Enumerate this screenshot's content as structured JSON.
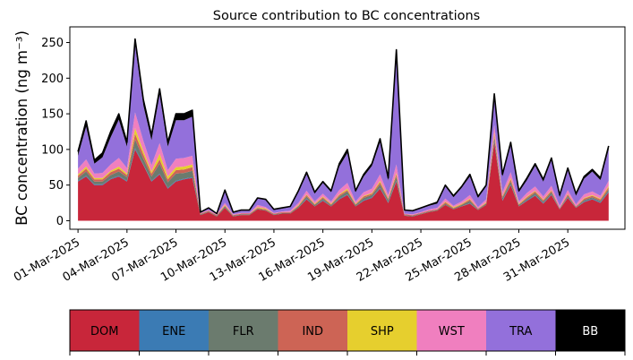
{
  "chart_data": {
    "type": "area",
    "stacked": true,
    "title": "Source contribution to BC concentrations",
    "ylabel": "BC concentration (ng m⁻³)",
    "xlabel": "",
    "x_range": [
      "2025-02-28T12:00",
      "2025-04-03T12:00"
    ],
    "ylim": [
      -12,
      272
    ],
    "yticks": [
      0,
      50,
      100,
      150,
      200,
      250
    ],
    "xticks": [
      "01-Mar-2025",
      "04-Mar-2025",
      "07-Mar-2025",
      "10-Mar-2025",
      "13-Mar-2025",
      "16-Mar-2025",
      "19-Mar-2025",
      "22-Mar-2025",
      "25-Mar-2025",
      "28-Mar-2025",
      "31-Mar-2025"
    ],
    "grid": false,
    "legend": {
      "placement": "bottom-colorbar"
    },
    "series_colors": {
      "DOM": "#c8263a",
      "ENE": "#3b7bb4",
      "FLR": "#6b7b6e",
      "IND": "#cd6455",
      "SHP": "#e6cf2e",
      "WST": "#f07fbf",
      "TRA": "#9370db",
      "BB": "#000000"
    },
    "x": [
      "2025-03-01T00:00",
      "2025-03-01T12:00",
      "2025-03-02T00:00",
      "2025-03-02T12:00",
      "2025-03-03T00:00",
      "2025-03-03T12:00",
      "2025-03-04T00:00",
      "2025-03-04T12:00",
      "2025-03-05T00:00",
      "2025-03-05T12:00",
      "2025-03-06T00:00",
      "2025-03-06T12:00",
      "2025-03-07T00:00",
      "2025-03-07T12:00",
      "2025-03-08T00:00",
      "2025-03-08T12:00",
      "2025-03-09T00:00",
      "2025-03-09T12:00",
      "2025-03-10T00:00",
      "2025-03-10T12:00",
      "2025-03-11T00:00",
      "2025-03-11T12:00",
      "2025-03-12T00:00",
      "2025-03-12T12:00",
      "2025-03-13T00:00",
      "2025-03-13T12:00",
      "2025-03-14T00:00",
      "2025-03-14T12:00",
      "2025-03-15T00:00",
      "2025-03-15T12:00",
      "2025-03-16T00:00",
      "2025-03-16T12:00",
      "2025-03-17T00:00",
      "2025-03-17T12:00",
      "2025-03-18T00:00",
      "2025-03-18T12:00",
      "2025-03-19T00:00",
      "2025-03-19T12:00",
      "2025-03-20T00:00",
      "2025-03-20T12:00",
      "2025-03-21T00:00",
      "2025-03-21T12:00",
      "2025-03-22T00:00",
      "2025-03-22T12:00",
      "2025-03-23T00:00",
      "2025-03-23T12:00",
      "2025-03-24T00:00",
      "2025-03-24T12:00",
      "2025-03-25T00:00",
      "2025-03-25T12:00",
      "2025-03-26T00:00",
      "2025-03-26T12:00",
      "2025-03-27T00:00",
      "2025-03-27T12:00",
      "2025-03-28T00:00",
      "2025-03-28T12:00",
      "2025-03-29T00:00",
      "2025-03-29T12:00",
      "2025-03-30T00:00",
      "2025-03-30T12:00",
      "2025-03-31T00:00",
      "2025-03-31T12:00",
      "2025-04-01T00:00",
      "2025-04-01T12:00",
      "2025-04-02T00:00",
      "2025-04-02T12:00"
    ],
    "total_envelope": [
      97,
      140,
      85,
      95,
      125,
      150,
      110,
      255,
      170,
      120,
      185,
      110,
      150,
      150,
      155,
      12,
      18,
      10,
      43,
      12,
      15,
      15,
      32,
      30,
      16,
      18,
      20,
      42,
      68,
      40,
      55,
      42,
      80,
      100,
      42,
      65,
      80,
      115,
      60,
      240,
      15,
      14,
      18,
      22,
      26,
      50,
      35,
      48,
      65,
      34,
      50,
      178,
      65,
      110,
      42,
      60,
      80,
      58,
      88,
      36,
      74,
      38,
      62,
      72,
      60,
      105
    ],
    "series": [
      {
        "name": "DOM",
        "values": [
          55,
          62,
          50,
          50,
          58,
          62,
          55,
          100,
          78,
          55,
          65,
          45,
          55,
          58,
          60,
          8,
          12,
          6,
          18,
          6,
          8,
          8,
          16,
          14,
          8,
          10,
          10,
          18,
          30,
          20,
          28,
          20,
          30,
          36,
          20,
          28,
          32,
          45,
          25,
          55,
          7,
          6,
          9,
          12,
          14,
          22,
          16,
          20,
          24,
          15,
          22,
          110,
          28,
          50,
          20,
          28,
          35,
          24,
          36,
          16,
          32,
          18,
          26,
          30,
          25,
          40
        ]
      },
      {
        "name": "ENE",
        "values": [
          1,
          1,
          1,
          1,
          1,
          1,
          1,
          2,
          1,
          1,
          1,
          1,
          1,
          1,
          1,
          0,
          0,
          0,
          0,
          0,
          0,
          0,
          0,
          0,
          0,
          0,
          0,
          0,
          1,
          0,
          1,
          0,
          1,
          1,
          0,
          1,
          1,
          1,
          1,
          1,
          0,
          0,
          0,
          0,
          0,
          0,
          0,
          0,
          1,
          0,
          0,
          1,
          1,
          1,
          0,
          1,
          1,
          1,
          1,
          0,
          1,
          0,
          1,
          1,
          1,
          1
        ]
      },
      {
        "name": "FLR",
        "values": [
          4,
          6,
          4,
          4,
          5,
          6,
          5,
          12,
          8,
          6,
          14,
          8,
          10,
          8,
          9,
          1,
          1,
          1,
          2,
          1,
          1,
          1,
          1,
          1,
          1,
          1,
          1,
          2,
          3,
          2,
          2,
          2,
          3,
          4,
          2,
          3,
          3,
          5,
          3,
          6,
          1,
          1,
          1,
          1,
          1,
          2,
          1,
          2,
          3,
          1,
          2,
          6,
          3,
          4,
          2,
          2,
          3,
          2,
          3,
          1,
          2,
          1,
          2,
          2,
          2,
          3
        ]
      },
      {
        "name": "IND",
        "values": [
          3,
          4,
          3,
          3,
          4,
          4,
          3,
          8,
          6,
          4,
          6,
          4,
          5,
          5,
          5,
          1,
          1,
          1,
          1,
          1,
          1,
          1,
          1,
          1,
          1,
          1,
          1,
          1,
          2,
          1,
          2,
          1,
          2,
          2,
          1,
          2,
          2,
          3,
          2,
          3,
          1,
          1,
          1,
          1,
          1,
          2,
          1,
          1,
          2,
          1,
          1,
          4,
          2,
          3,
          1,
          2,
          2,
          2,
          2,
          1,
          2,
          1,
          2,
          2,
          2,
          3
        ]
      },
      {
        "name": "SHP",
        "values": [
          2,
          3,
          2,
          2,
          2,
          3,
          2,
          8,
          5,
          3,
          8,
          4,
          4,
          4,
          4,
          0,
          0,
          0,
          1,
          0,
          0,
          0,
          1,
          1,
          0,
          0,
          0,
          1,
          1,
          1,
          1,
          1,
          1,
          2,
          1,
          1,
          1,
          2,
          1,
          2,
          0,
          0,
          0,
          0,
          0,
          1,
          1,
          1,
          1,
          0,
          1,
          3,
          1,
          2,
          1,
          1,
          1,
          1,
          1,
          0,
          1,
          0,
          1,
          1,
          1,
          2
        ]
      },
      {
        "name": "WST",
        "values": [
          8,
          10,
          6,
          7,
          9,
          12,
          8,
          22,
          14,
          9,
          15,
          9,
          12,
          12,
          12,
          1,
          1,
          1,
          3,
          1,
          1,
          1,
          3,
          2,
          1,
          1,
          2,
          3,
          5,
          3,
          4,
          3,
          6,
          8,
          3,
          5,
          6,
          9,
          4,
          12,
          1,
          1,
          1,
          2,
          2,
          4,
          2,
          3,
          5,
          2,
          4,
          10,
          5,
          8,
          3,
          5,
          6,
          4,
          6,
          3,
          5,
          3,
          5,
          5,
          4,
          7
        ]
      },
      {
        "name": "TRA",
        "values": [
          18,
          46,
          14,
          22,
          38,
          54,
          30,
          95,
          50,
          35,
          68,
          33,
          54,
          53,
          55,
          1,
          2,
          1,
          16,
          2,
          3,
          3,
          9,
          10,
          4,
          4,
          5,
          15,
          23,
          11,
          15,
          13,
          33,
          42,
          13,
          22,
          32,
          45,
          20,
          155,
          4,
          4,
          5,
          5,
          6,
          17,
          12,
          19,
          26,
          13,
          18,
          38,
          22,
          38,
          13,
          18,
          29,
          21,
          36,
          12,
          28,
          12,
          22,
          28,
          22,
          44
        ]
      },
      {
        "name": "BB",
        "values": [
          6,
          8,
          5,
          6,
          8,
          8,
          6,
          8,
          8,
          7,
          8,
          6,
          9,
          9,
          9,
          0,
          1,
          0,
          2,
          1,
          1,
          1,
          1,
          1,
          1,
          1,
          1,
          2,
          3,
          2,
          2,
          2,
          4,
          5,
          2,
          3,
          3,
          5,
          4,
          6,
          1,
          1,
          1,
          1,
          2,
          2,
          2,
          2,
          3,
          2,
          2,
          6,
          3,
          4,
          2,
          3,
          3,
          3,
          3,
          2,
          3,
          3,
          3,
          3,
          3,
          5
        ]
      }
    ],
    "legend_labels": [
      "DOM",
      "ENE",
      "FLR",
      "IND",
      "SHP",
      "WST",
      "TRA",
      "BB"
    ]
  }
}
